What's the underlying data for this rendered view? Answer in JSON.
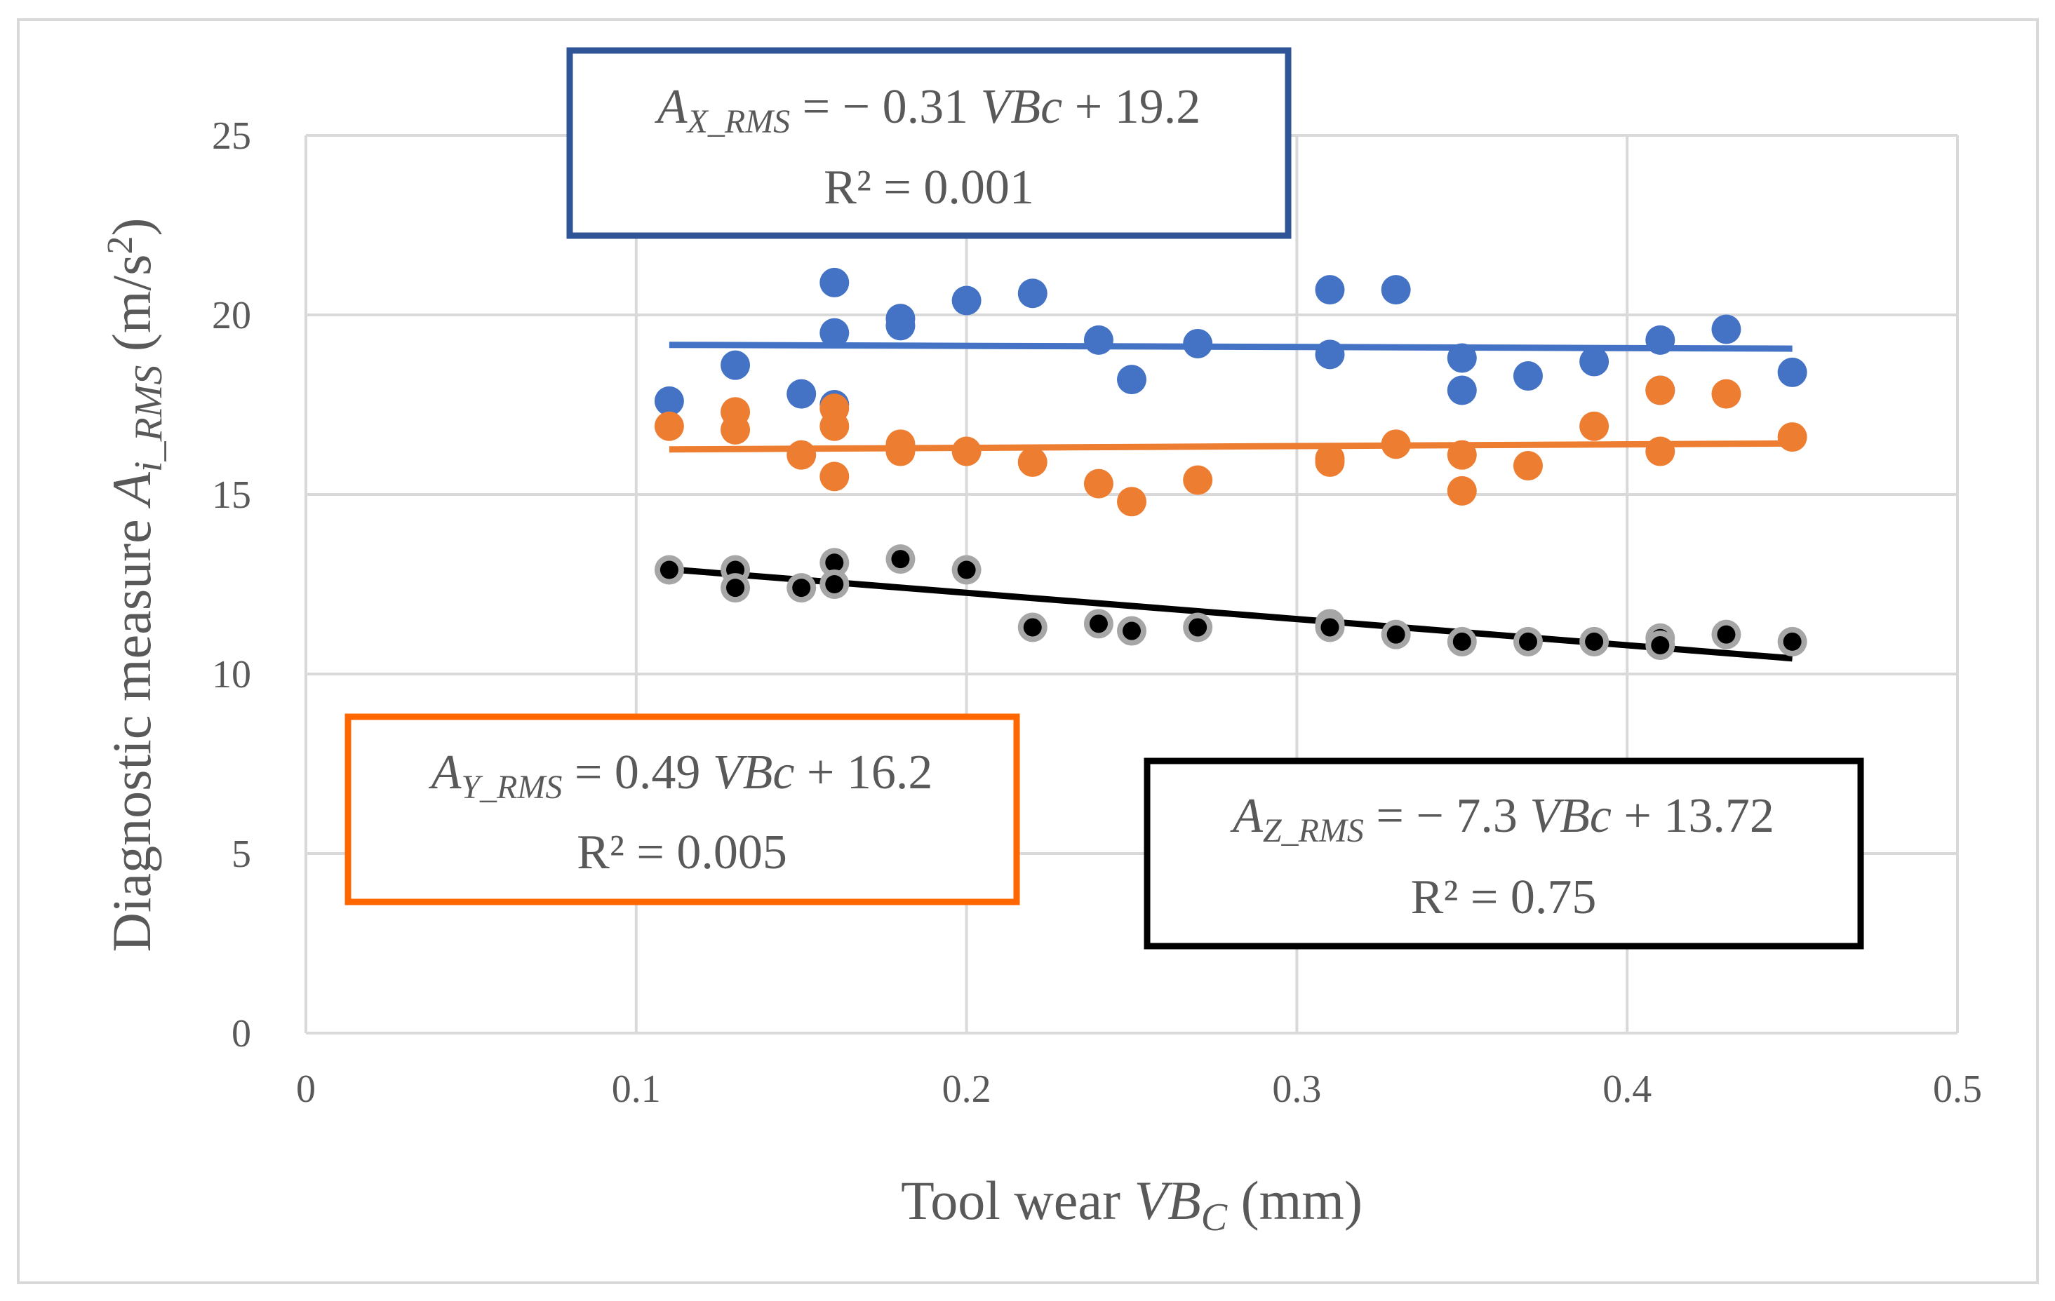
{
  "chart_data": {
    "type": "scatter",
    "xlabel": {
      "prefix": "Tool wear ",
      "var": "VB",
      "sub": "C",
      "suffix": " (mm)"
    },
    "ylabel": {
      "prefix": "Diagnostic measure ",
      "var": "A",
      "sub": "i_RMS",
      "suffix": " (m/s",
      "sup": "2",
      "end": ")"
    },
    "xlim": [
      0,
      0.5
    ],
    "ylim": [
      0,
      25
    ],
    "xticks": [
      "0",
      "0.1",
      "0.2",
      "0.3",
      "0.4",
      "0.5"
    ],
    "yticks": [
      "0",
      "5",
      "10",
      "15",
      "20",
      "25"
    ],
    "grid": true,
    "series": [
      {
        "name": "A_X_RMS",
        "color": "#4472c4",
        "points": [
          [
            0.11,
            17.6
          ],
          [
            0.13,
            18.6
          ],
          [
            0.15,
            17.8
          ],
          [
            0.16,
            20.9
          ],
          [
            0.16,
            19.5
          ],
          [
            0.16,
            17.5
          ],
          [
            0.18,
            19.9
          ],
          [
            0.18,
            19.7
          ],
          [
            0.2,
            20.4
          ],
          [
            0.22,
            20.6
          ],
          [
            0.24,
            19.3
          ],
          [
            0.25,
            18.2
          ],
          [
            0.27,
            19.2
          ],
          [
            0.31,
            20.7
          ],
          [
            0.31,
            18.9
          ],
          [
            0.33,
            20.7
          ],
          [
            0.35,
            18.8
          ],
          [
            0.35,
            17.9
          ],
          [
            0.37,
            18.3
          ],
          [
            0.39,
            18.7
          ],
          [
            0.41,
            19.3
          ],
          [
            0.41,
            17.9
          ],
          [
            0.43,
            19.6
          ],
          [
            0.45,
            18.4
          ]
        ],
        "trend": {
          "slope": -0.31,
          "intercept": 19.2,
          "x0": 0.11,
          "x1": 0.45
        },
        "equation": {
          "var": "A",
          "sub": "X_RMS",
          "rhs_pre": " = − 0.31 ",
          "rhs_var": "VBc",
          "rhs_post": " + 19.2",
          "r2": "R² = 0.001"
        }
      },
      {
        "name": "A_Y_RMS",
        "color": "#ed7d31",
        "points": [
          [
            0.11,
            16.9
          ],
          [
            0.13,
            17.3
          ],
          [
            0.13,
            16.8
          ],
          [
            0.15,
            16.1
          ],
          [
            0.16,
            17.4
          ],
          [
            0.16,
            16.9
          ],
          [
            0.16,
            15.5
          ],
          [
            0.18,
            16.4
          ],
          [
            0.18,
            16.2
          ],
          [
            0.2,
            16.2
          ],
          [
            0.22,
            15.9
          ],
          [
            0.24,
            15.3
          ],
          [
            0.25,
            14.8
          ],
          [
            0.27,
            15.4
          ],
          [
            0.31,
            16.0
          ],
          [
            0.31,
            15.9
          ],
          [
            0.33,
            16.4
          ],
          [
            0.35,
            16.1
          ],
          [
            0.35,
            15.1
          ],
          [
            0.37,
            15.8
          ],
          [
            0.39,
            16.9
          ],
          [
            0.41,
            17.9
          ],
          [
            0.41,
            16.2
          ],
          [
            0.43,
            17.8
          ],
          [
            0.45,
            16.6
          ]
        ],
        "trend": {
          "slope": 0.49,
          "intercept": 16.2,
          "x0": 0.11,
          "x1": 0.45
        },
        "equation": {
          "var": "A",
          "sub": "Y_RMS",
          "rhs_pre": " = 0.49 ",
          "rhs_var": "VBc",
          "rhs_post": " + 16.2",
          "r2": "R² = 0.005"
        }
      },
      {
        "name": "A_Z_RMS",
        "color": "#000000",
        "points": [
          [
            0.11,
            12.9
          ],
          [
            0.13,
            12.9
          ],
          [
            0.13,
            12.4
          ],
          [
            0.15,
            12.4
          ],
          [
            0.16,
            13.1
          ],
          [
            0.16,
            12.5
          ],
          [
            0.18,
            13.2
          ],
          [
            0.2,
            12.9
          ],
          [
            0.22,
            11.3
          ],
          [
            0.24,
            11.4
          ],
          [
            0.25,
            11.2
          ],
          [
            0.27,
            11.3
          ],
          [
            0.31,
            11.4
          ],
          [
            0.31,
            11.3
          ],
          [
            0.33,
            11.1
          ],
          [
            0.35,
            10.9
          ],
          [
            0.37,
            10.9
          ],
          [
            0.39,
            10.9
          ],
          [
            0.41,
            11.0
          ],
          [
            0.41,
            10.8
          ],
          [
            0.43,
            11.1
          ],
          [
            0.45,
            10.9
          ]
        ],
        "trend": {
          "slope": -7.3,
          "intercept": 13.72,
          "x0": 0.11,
          "x1": 0.45
        },
        "equation": {
          "var": "A",
          "sub": "Z_RMS",
          "rhs_pre": " = − 7.3 ",
          "rhs_var": "VBc",
          "rhs_post": " + 13.72",
          "r2": "R² = 0.75"
        }
      }
    ]
  }
}
